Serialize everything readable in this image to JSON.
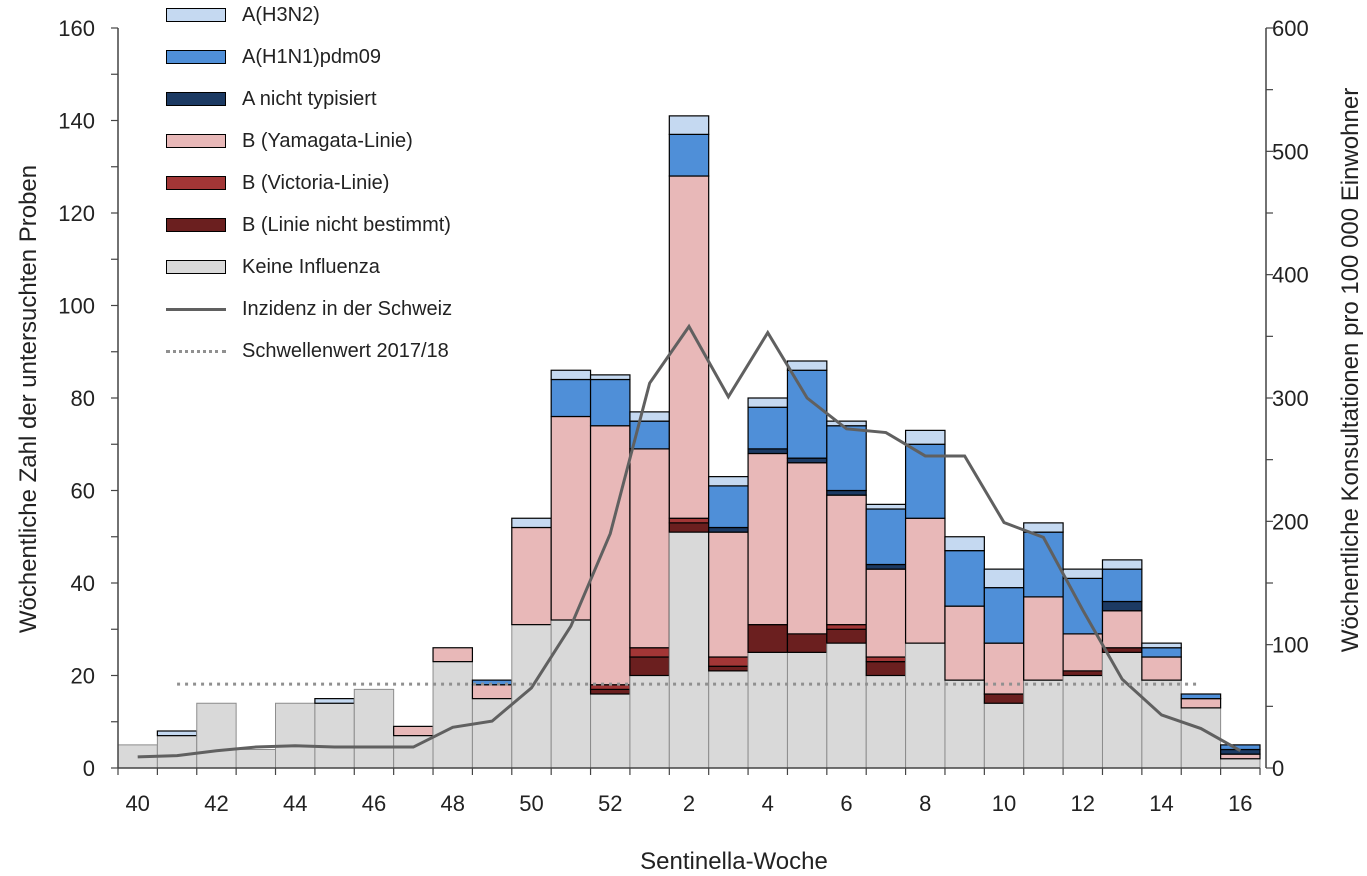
{
  "chart_data": {
    "type": "bar",
    "stacked": true,
    "xlabel": "Sentinella-Woche",
    "ylabel": "Wöchentliche Zahl der untersuchten Proben",
    "y2label": "Wöchentliche Konsultationen pro 100 000 Einwohner",
    "ylim": [
      0,
      160
    ],
    "y2lim": [
      0,
      600
    ],
    "yticks": [
      "0",
      "20",
      "40",
      "60",
      "80",
      "100",
      "120",
      "140",
      "160"
    ],
    "y2ticks": [
      "0",
      "100",
      "200",
      "300",
      "400",
      "500",
      "600"
    ],
    "weeks": [
      "40",
      "41",
      "42",
      "43",
      "44",
      "45",
      "46",
      "47",
      "48",
      "49",
      "50",
      "51",
      "52",
      "1",
      "2",
      "3",
      "4",
      "5",
      "6",
      "7",
      "8",
      "9",
      "10",
      "11",
      "12",
      "13",
      "14",
      "15",
      "16"
    ],
    "xticks": [
      "40",
      "42",
      "44",
      "46",
      "48",
      "50",
      "52",
      "2",
      "4",
      "6",
      "8",
      "10",
      "12",
      "14",
      "16"
    ],
    "series": [
      {
        "name": "Keine Influenza",
        "color": "#d9d9d9",
        "values": [
          5,
          7,
          14,
          4,
          14,
          14,
          17,
          7,
          23,
          15,
          31,
          32,
          16,
          20,
          51,
          21,
          25,
          25,
          27,
          20,
          27,
          19,
          14,
          19,
          20,
          25,
          19,
          13,
          2
        ]
      },
      {
        "name": "B (Linie nicht bestimmt)",
        "color": "#6b1f1f",
        "values": [
          0,
          0,
          0,
          0,
          0,
          0,
          0,
          0,
          0,
          0,
          0,
          0,
          1,
          4,
          2,
          1,
          6,
          4,
          3,
          3,
          0,
          0,
          2,
          0,
          1,
          1,
          0,
          0,
          0
        ]
      },
      {
        "name": "B (Victoria-Linie)",
        "color": "#a23636",
        "values": [
          0,
          0,
          0,
          0,
          0,
          0,
          0,
          0,
          0,
          0,
          0,
          0,
          1,
          2,
          1,
          2,
          0,
          0,
          1,
          1,
          0,
          0,
          0,
          0,
          0,
          0,
          0,
          0,
          0
        ]
      },
      {
        "name": "B (Yamagata-Linie)",
        "color": "#e8b8b8",
        "values": [
          0,
          0,
          0,
          0,
          0,
          0,
          0,
          2,
          3,
          3,
          21,
          44,
          56,
          43,
          74,
          27,
          37,
          37,
          28,
          19,
          27,
          16,
          11,
          18,
          8,
          8,
          5,
          2,
          1
        ]
      },
      {
        "name": "A nicht typisiert",
        "color": "#1c3a63",
        "values": [
          0,
          0,
          0,
          0,
          0,
          0,
          0,
          0,
          0,
          0,
          0,
          0,
          0,
          0,
          0,
          1,
          1,
          1,
          1,
          1,
          0,
          0,
          0,
          0,
          0,
          2,
          0,
          0,
          1
        ]
      },
      {
        "name": "A(H1N1)pdm09",
        "color": "#4f8fd8",
        "values": [
          0,
          0,
          0,
          0,
          0,
          0,
          0,
          0,
          0,
          1,
          0,
          8,
          10,
          6,
          9,
          9,
          9,
          19,
          14,
          12,
          16,
          12,
          12,
          14,
          12,
          7,
          2,
          1,
          1
        ]
      },
      {
        "name": "A(H3N2)",
        "color": "#c5d9f1",
        "values": [
          0,
          1,
          0,
          0,
          0,
          1,
          0,
          0,
          0,
          0,
          2,
          2,
          1,
          2,
          4,
          2,
          2,
          2,
          1,
          1,
          3,
          3,
          4,
          2,
          2,
          2,
          1,
          0,
          0
        ]
      }
    ],
    "lines": [
      {
        "name": "Inzidenz in der Schweiz",
        "color": "#606060",
        "style": "solid",
        "axis": "right",
        "values": [
          9,
          10,
          14,
          17,
          18,
          17,
          17,
          17,
          33,
          38,
          65,
          115,
          190,
          312,
          358,
          301,
          353,
          300,
          275,
          272,
          253,
          253,
          199,
          187,
          128,
          72,
          43,
          32,
          14
        ]
      },
      {
        "name": "Schwellenwert 2017/18",
        "color": "#909090",
        "style": "dotted",
        "axis": "right",
        "values": [
          68,
          68,
          68,
          68,
          68,
          68,
          68,
          68,
          68,
          68,
          68,
          68,
          68,
          68,
          68,
          68,
          68,
          68,
          68,
          68,
          68,
          68,
          68,
          68,
          68,
          68,
          68,
          68,
          68
        ]
      }
    ],
    "legend_position": "top-left",
    "grid": false
  },
  "legend": {
    "items": [
      {
        "label": "A(H3N2)",
        "kind": "box",
        "color": "#c5d9f1"
      },
      {
        "label": "A(H1N1)pdm09",
        "kind": "box",
        "color": "#4f8fd8"
      },
      {
        "label": "A nicht typisiert",
        "kind": "box",
        "color": "#1c3a63"
      },
      {
        "label": "B (Yamagata-Linie)",
        "kind": "box",
        "color": "#e8b8b8"
      },
      {
        "label": "B (Victoria-Linie)",
        "kind": "box",
        "color": "#a23636"
      },
      {
        "label": "B (Linie nicht bestimmt)",
        "kind": "box",
        "color": "#6b1f1f"
      },
      {
        "label": "Keine Influenza",
        "kind": "box",
        "color": "#d9d9d9"
      },
      {
        "label": "Inzidenz in der Schweiz",
        "kind": "solid",
        "color": "#606060"
      },
      {
        "label": "Schwellenwert 2017/18",
        "kind": "dotted",
        "color": "#909090"
      }
    ]
  }
}
